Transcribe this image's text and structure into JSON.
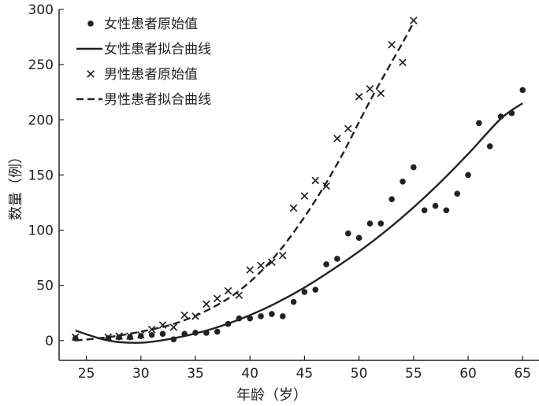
{
  "chart_data": {
    "type": "scatter",
    "title": "",
    "xlabel": "年龄（岁）",
    "ylabel": "数量（例）",
    "xlim": [
      22.5,
      66.5
    ],
    "ylim": [
      -18,
      300
    ],
    "xticks": [
      25,
      30,
      35,
      40,
      45,
      50,
      55,
      60,
      65
    ],
    "yticks": [
      0,
      50,
      100,
      150,
      200,
      250,
      300
    ],
    "grid": false,
    "legend_position": "top-left",
    "series": [
      {
        "name": "女性患者原始值",
        "kind": "points",
        "marker": "dot",
        "x": [
          24,
          27,
          28,
          29,
          30,
          31,
          32,
          33,
          34,
          35,
          36,
          37,
          38,
          39,
          40,
          41,
          42,
          43,
          44,
          45,
          46,
          47,
          48,
          49,
          50,
          51,
          52,
          53,
          54,
          55,
          56,
          57,
          58,
          59,
          60,
          61,
          62,
          63,
          64,
          65
        ],
        "y": [
          2,
          2,
          3,
          3,
          4,
          5,
          6,
          1,
          6,
          7,
          7,
          8,
          15,
          20,
          20,
          22,
          24,
          22,
          35,
          44,
          46,
          69,
          74,
          97,
          93,
          106,
          106,
          128,
          144,
          157,
          118,
          122,
          118,
          133,
          150,
          197,
          176,
          203,
          206,
          227
        ]
      },
      {
        "name": "女性患者拟合曲线",
        "kind": "line",
        "style": "solid",
        "x": [
          24,
          27,
          30,
          33,
          36,
          39,
          42,
          45,
          48,
          51,
          54,
          57,
          60,
          63,
          65
        ],
        "y": [
          9,
          0,
          -2,
          2,
          9,
          19,
          32,
          48,
          67,
          88,
          112,
          139,
          169,
          201,
          215
        ]
      },
      {
        "name": "男性患者原始值",
        "kind": "points",
        "marker": "cross",
        "x": [
          24,
          27,
          28,
          29,
          30,
          31,
          32,
          33,
          34,
          35,
          36,
          37,
          38,
          39,
          40,
          41,
          42,
          43,
          44,
          45,
          46,
          47,
          48,
          49,
          50,
          51,
          52,
          53,
          54,
          55
        ],
        "y": [
          3,
          3,
          4,
          4,
          5,
          10,
          14,
          12,
          23,
          22,
          33,
          38,
          45,
          41,
          64,
          68,
          71,
          77,
          120,
          131,
          145,
          140,
          183,
          192,
          221,
          228,
          224,
          268,
          252,
          290
        ]
      },
      {
        "name": "男性患者拟合曲线",
        "kind": "line",
        "style": "dashed",
        "x": [
          24,
          27,
          30,
          33,
          36,
          39,
          42,
          45,
          48,
          51,
          54,
          55
        ],
        "y": [
          0,
          3,
          8,
          15,
          27,
          45,
          73,
          112,
          160,
          217,
          270,
          288
        ]
      }
    ]
  }
}
